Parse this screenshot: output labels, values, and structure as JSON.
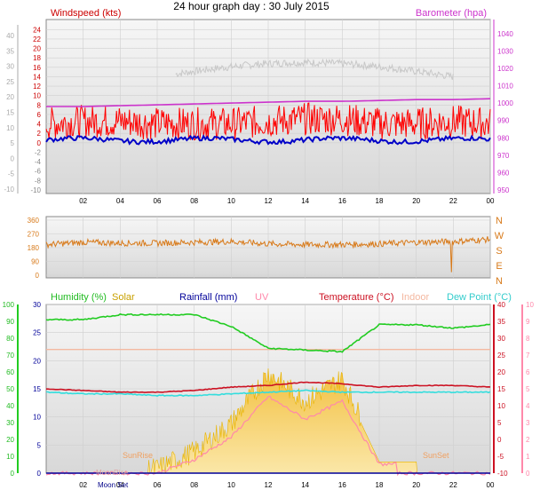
{
  "title": "24 hour graph day : 30 July 2015",
  "colors": {
    "windspeed": "#e00000",
    "gust": "#ff0000",
    "avg_wind": "#0000c8",
    "barometer": "#cc33cc",
    "baro_shadow": "#c8c8c8",
    "direction": "#d87a1a",
    "humidity": "#22cc22",
    "solar": "#e8b400",
    "rainfall": "#000099",
    "uv": "#ff88aa",
    "temperature": "#cc1122",
    "indoor": "#f4b8a0",
    "dewpoint": "#33dddd",
    "plot_bg_top": "#f4f4f4",
    "plot_bg_bottom": "#dcdcdc"
  },
  "x_tick_labels": [
    "02",
    "04",
    "06",
    "08",
    "10",
    "12",
    "14",
    "16",
    "18",
    "20",
    "22",
    "00"
  ],
  "panel1": {
    "left_label": "Windspeed (kts)",
    "right_label": "Barometer (hpa)",
    "left_ticks": [
      "24",
      "22",
      "20",
      "18",
      "16",
      "14",
      "12",
      "10",
      "8",
      "6",
      "4",
      "2",
      "0"
    ],
    "neg_ticks": [
      "-2",
      "-4",
      "-6",
      "-8",
      "-10"
    ],
    "right_ticks": [
      "1040",
      "1030",
      "1020",
      "1010",
      "1000",
      "990",
      "980",
      "970",
      "960",
      "950"
    ],
    "outer_ticks": [
      "40",
      "35",
      "30",
      "25",
      "20",
      "15",
      "10",
      "5",
      "0",
      "-5",
      "-10"
    ]
  },
  "panel2": {
    "left_ticks": [
      "360",
      "270",
      "180",
      "90",
      "0"
    ],
    "compass": [
      "N",
      "W",
      "S",
      "E",
      "N"
    ]
  },
  "panel3": {
    "humidity_label": "Humidity  (%)",
    "solar_label": "Solar",
    "rain_label": "Rainfall (mm)",
    "uv_label": "UV",
    "temp_label": "Temperature (°C)",
    "indoor_label": "Indoor",
    "dew_label": "Dew Point (°C)",
    "left_ticks": [
      "30",
      "25",
      "20",
      "15",
      "10",
      "5",
      "0"
    ],
    "humidity_ticks": [
      "100",
      "90",
      "80",
      "70",
      "60",
      "50",
      "40",
      "30",
      "20",
      "10",
      "0"
    ],
    "temp_ticks": [
      "40",
      "35",
      "30",
      "25",
      "20",
      "15",
      "10",
      "5",
      "0",
      "-5",
      "-10"
    ],
    "uv_ticks": [
      "10",
      "9",
      "8",
      "7",
      "6",
      "5",
      "4",
      "3",
      "2",
      "1",
      "0"
    ],
    "annotations": {
      "sunrise": "SunRise",
      "sunset": "SunSet",
      "moonset": "Moon Set",
      "moonrise": "MoonRise"
    }
  },
  "chart_data": [
    {
      "type": "line",
      "title": "24 hour graph day : 30 July 2015",
      "x": [
        "00",
        "02",
        "04",
        "06",
        "08",
        "10",
        "12",
        "14",
        "16",
        "18",
        "20",
        "22",
        "00"
      ],
      "series": [
        {
          "name": "Windspeed (kts)",
          "values": [
            3,
            3.5,
            3.5,
            3,
            3,
            3,
            3.5,
            4,
            4,
            3,
            3,
            3.5,
            3
          ]
        },
        {
          "name": "Barometer (hpa)",
          "values": [
            998,
            998,
            998.5,
            999,
            999.5,
            1000,
            1000.5,
            1001,
            1001,
            1001.5,
            1002,
            1002,
            1002.5
          ]
        }
      ],
      "ylim_left": [
        -10,
        25
      ],
      "ylim_right": [
        950,
        1045
      ]
    },
    {
      "type": "line",
      "x": [
        "00",
        "02",
        "04",
        "06",
        "08",
        "10",
        "12",
        "14",
        "16",
        "18",
        "20",
        "22",
        "00"
      ],
      "series": [
        {
          "name": "Wind direction",
          "values": [
            200,
            215,
            210,
            210,
            215,
            220,
            205,
            200,
            200,
            205,
            215,
            220,
            235
          ]
        }
      ],
      "ylim": [
        0,
        360
      ]
    },
    {
      "type": "line",
      "x": [
        "00",
        "02",
        "04",
        "06",
        "08",
        "10",
        "12",
        "14",
        "16",
        "18",
        "20",
        "22",
        "00"
      ],
      "series": [
        {
          "name": "Humidity  (%)",
          "values": [
            91,
            91,
            94,
            94,
            94,
            87,
            74,
            73,
            72,
            88,
            88,
            86,
            88
          ]
        },
        {
          "name": "Temperature (°C)",
          "values": [
            15,
            14.5,
            14,
            14,
            14.5,
            15.5,
            16,
            17,
            16.5,
            15.5,
            16,
            16,
            15.5
          ]
        },
        {
          "name": "Dew Point (°C)",
          "values": [
            14,
            13.5,
            13.5,
            13,
            13,
            13.5,
            14,
            14.5,
            14,
            14,
            14,
            14,
            14
          ]
        },
        {
          "name": "Indoor",
          "values": [
            22,
            22,
            22,
            22,
            22,
            22,
            22,
            22,
            22,
            22,
            22,
            22,
            22
          ]
        },
        {
          "name": "Solar",
          "values": [
            0,
            0,
            0,
            0,
            3,
            8,
            17,
            12,
            16,
            2,
            2,
            0,
            0
          ]
        },
        {
          "name": "Rainfall (mm)",
          "values": [
            0,
            0,
            0,
            0,
            0,
            0,
            0,
            0,
            0,
            0,
            0,
            0,
            0
          ]
        }
      ],
      "ylim_left": [
        0,
        30
      ],
      "ylim_humidity": [
        0,
        100
      ],
      "ylim_temp": [
        -10,
        40
      ]
    }
  ]
}
